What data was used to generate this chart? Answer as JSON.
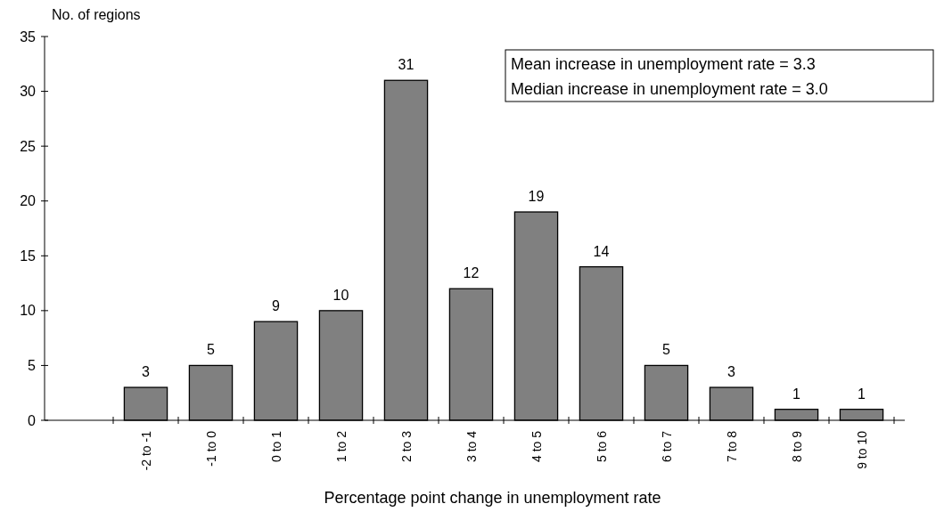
{
  "chart_data": {
    "type": "bar",
    "xlabel": "Percentage point change in unemployment rate",
    "ylabel": "No. of regions",
    "categories": [
      "-2 to -1",
      "-1 to 0",
      "0 to 1",
      "1 to 2",
      "2 to 3",
      "3 to 4",
      "4 to 5",
      "5 to 6",
      "6 to 7",
      "7 to 8",
      "8 to 9",
      "9 to 10"
    ],
    "values": [
      3,
      5,
      9,
      10,
      31,
      12,
      19,
      14,
      5,
      3,
      1,
      1
    ],
    "color": "#808080",
    "ylim": [
      0,
      35
    ],
    "yticks": [
      0,
      5,
      10,
      15,
      20,
      25,
      30,
      35
    ],
    "grid": false,
    "data_labels": true,
    "annotations": [
      "Mean increase in unemployment rate = 3.3",
      "Median increase in unemployment rate = 3.0"
    ]
  }
}
